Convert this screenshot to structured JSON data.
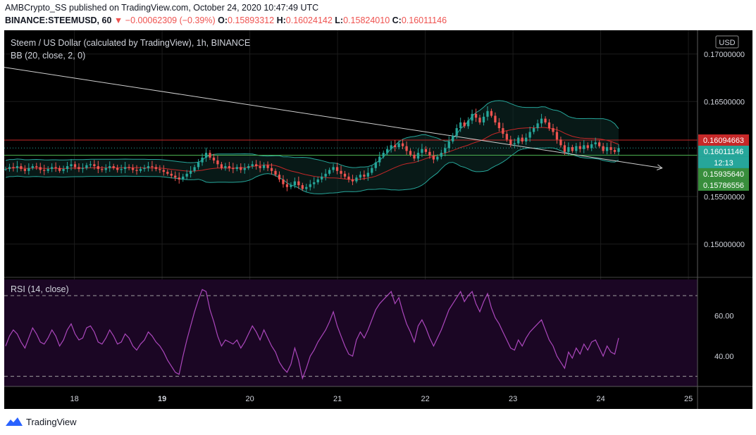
{
  "header": {
    "publisher": "AMBCrypto_SS published on TradingView.com, October 24, 2020 10:47:49 UTC",
    "symbol": "BINANCE:STEEMUSD, 60",
    "change_arrow": "▼",
    "change": "−0.00062309 (−0.39%)",
    "open_label": "O:",
    "open": "0.15893312",
    "high_label": "H:",
    "high": "0.16024142",
    "low_label": "L:",
    "low": "0.15824010",
    "close_label": "C:",
    "close": "0.16011146"
  },
  "chart": {
    "legend_title": "Steem / US Dollar (calculated by TradingView), 1h, BINANCE",
    "bb_label": "BB (20, close, 2, 0)",
    "rsi_label": "RSI (14, close)",
    "currency": "USD",
    "countdown": "12:13"
  },
  "brand": {
    "name": "TradingView"
  },
  "chart_data": {
    "type": "line",
    "x_ticks": [
      "18",
      "19",
      "20",
      "21",
      "22",
      "23",
      "24",
      "25"
    ],
    "price_axis": {
      "ylim": [
        0.1465,
        0.1725
      ],
      "ticks": [
        "0.17000000",
        "0.16500000",
        "0.15500000",
        "0.15000000"
      ]
    },
    "price_labels": [
      {
        "value": 0.16094663,
        "text": "0.16094663",
        "color": "#c62828"
      },
      {
        "value": 0.16011146,
        "text": "0.16011146",
        "color": "#26a69a"
      },
      {
        "value": 0.1593564,
        "text": "0.15935640",
        "color": "#388e3c"
      },
      {
        "value": 0.15786556,
        "text": "0.15786556",
        "color": "#388e3c"
      }
    ],
    "horizontal_lines": [
      {
        "value": 0.16094663,
        "color": "#c62828"
      },
      {
        "value": 0.1593564,
        "color": "#4caf50"
      },
      {
        "value": 0.16011146,
        "color": "#26a69a",
        "dotted": true
      }
    ],
    "trendline": [
      [
        17.2,
        0.1686
      ],
      [
        24.7,
        0.158
      ]
    ],
    "candles_close": [
      0.1579,
      0.1581,
      0.158,
      0.1582,
      0.1579,
      0.1577,
      0.158,
      0.1582,
      0.1581,
      0.1578,
      0.1577,
      0.1579,
      0.1581,
      0.158,
      0.1577,
      0.1579,
      0.1582,
      0.1584,
      0.1581,
      0.1579,
      0.158,
      0.1583,
      0.1584,
      0.1582,
      0.1579,
      0.1578,
      0.158,
      0.1582,
      0.158,
      0.1578,
      0.1579,
      0.1581,
      0.158,
      0.1578,
      0.1577,
      0.1579,
      0.158,
      0.1582,
      0.1581,
      0.1579,
      0.1578,
      0.1576,
      0.1574,
      0.1572,
      0.157,
      0.1568,
      0.1571,
      0.1574,
      0.1577,
      0.1581,
      0.1586,
      0.1591,
      0.1596,
      0.1591,
      0.1588,
      0.1584,
      0.158,
      0.1582,
      0.158,
      0.1579,
      0.1581,
      0.1578,
      0.158,
      0.1582,
      0.1584,
      0.1582,
      0.158,
      0.1583,
      0.158,
      0.1577,
      0.1573,
      0.1568,
      0.1563,
      0.156,
      0.1562,
      0.1566,
      0.1562,
      0.1558,
      0.156,
      0.1563,
      0.1565,
      0.1568,
      0.1571,
      0.1574,
      0.1578,
      0.1581,
      0.1577,
      0.1574,
      0.1571,
      0.1568,
      0.1566,
      0.157,
      0.1573,
      0.1571,
      0.1575,
      0.158,
      0.1586,
      0.1592,
      0.1596,
      0.16,
      0.1604,
      0.1602,
      0.1606,
      0.1603,
      0.1598,
      0.1594,
      0.159,
      0.1596,
      0.16,
      0.1597,
      0.1593,
      0.1589,
      0.1592,
      0.1596,
      0.1601,
      0.1608,
      0.1614,
      0.1622,
      0.1628,
      0.1624,
      0.163,
      0.1637,
      0.1633,
      0.1628,
      0.1634,
      0.164,
      0.1635,
      0.1628,
      0.1622,
      0.1616,
      0.161,
      0.1605,
      0.1606,
      0.1612,
      0.1608,
      0.1612,
      0.1618,
      0.1622,
      0.1627,
      0.1632,
      0.1628,
      0.1622,
      0.1618,
      0.161,
      0.1604,
      0.1597,
      0.1602,
      0.1598,
      0.1603,
      0.16,
      0.1604,
      0.1601,
      0.1605,
      0.1607,
      0.1603,
      0.1598,
      0.1602,
      0.1599,
      0.1597,
      0.1601
    ],
    "rsi": {
      "ylim": [
        25,
        78
      ],
      "ticks": [
        60,
        40
      ],
      "bands": [
        30,
        70
      ],
      "values": [
        45,
        50,
        53,
        51,
        47,
        44,
        49,
        54,
        51,
        47,
        46,
        49,
        53,
        50,
        45,
        48,
        53,
        56,
        51,
        48,
        49,
        54,
        55,
        52,
        47,
        46,
        49,
        53,
        50,
        46,
        47,
        51,
        49,
        45,
        43,
        46,
        48,
        52,
        50,
        47,
        45,
        42,
        38,
        35,
        32,
        31,
        40,
        48,
        55,
        62,
        68,
        73,
        72,
        63,
        57,
        50,
        45,
        48,
        47,
        46,
        48,
        44,
        47,
        51,
        55,
        52,
        48,
        53,
        49,
        45,
        42,
        37,
        34,
        32,
        36,
        44,
        38,
        29,
        34,
        40,
        43,
        47,
        50,
        53,
        57,
        62,
        55,
        50,
        45,
        41,
        40,
        48,
        52,
        49,
        53,
        58,
        63,
        66,
        68,
        70,
        72,
        66,
        69,
        62,
        56,
        52,
        47,
        55,
        58,
        54,
        49,
        45,
        49,
        53,
        58,
        63,
        66,
        69,
        72,
        67,
        70,
        72,
        66,
        62,
        67,
        71,
        64,
        59,
        56,
        52,
        48,
        44,
        43,
        48,
        45,
        49,
        52,
        54,
        56,
        58,
        53,
        48,
        45,
        40,
        37,
        34,
        42,
        39,
        44,
        41,
        46,
        43,
        47,
        48,
        44,
        40,
        45,
        42,
        41,
        49
      ]
    }
  }
}
